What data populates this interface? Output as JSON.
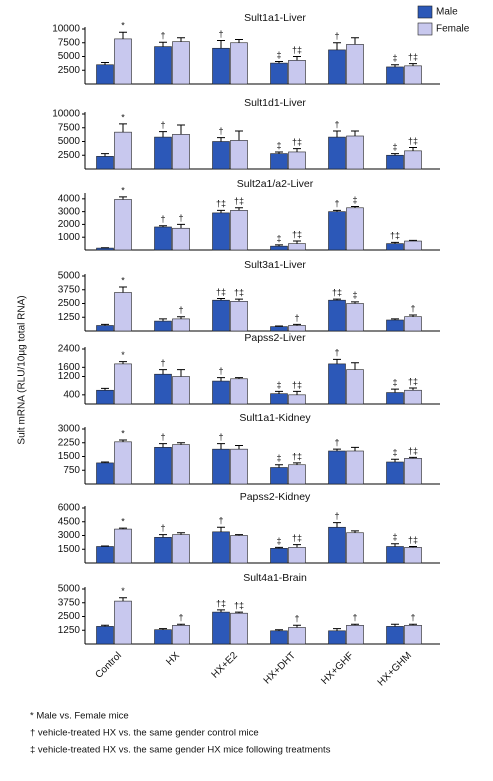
{
  "chart_data": [
    {
      "type": "bar",
      "title": "Sult1a1-Liver",
      "ylim": [
        0,
        10000
      ],
      "yticks": [
        2500,
        5000,
        7500,
        10000
      ],
      "series": [
        {
          "values": [
            3500,
            6800,
            6500,
            3800,
            6200,
            3100
          ],
          "errors": [
            400,
            800,
            1400,
            300,
            1300,
            400
          ],
          "annotations": [
            null,
            "†",
            "†",
            "‡",
            "†",
            "‡"
          ]
        },
        {
          "values": [
            8200,
            7700,
            7500,
            4300,
            7200,
            3300
          ],
          "errors": [
            1200,
            700,
            600,
            700,
            1200,
            400
          ],
          "annotations": [
            "*",
            null,
            null,
            "†‡",
            null,
            "†‡"
          ]
        }
      ]
    },
    {
      "type": "bar",
      "title": "Sult1d1-Liver",
      "ylim": [
        0,
        10000
      ],
      "yticks": [
        2500,
        5000,
        7500,
        10000
      ],
      "series": [
        {
          "values": [
            2300,
            5800,
            5000,
            2800,
            5800,
            2500
          ],
          "errors": [
            500,
            1000,
            700,
            300,
            1100,
            300
          ],
          "annotations": [
            null,
            "†",
            "†",
            "‡",
            "†",
            "‡"
          ]
        },
        {
          "values": [
            6700,
            6300,
            5200,
            3100,
            6000,
            3300
          ],
          "errors": [
            1500,
            1700,
            1700,
            600,
            900,
            600
          ],
          "annotations": [
            "*",
            null,
            null,
            "†‡",
            null,
            "†‡"
          ]
        }
      ]
    },
    {
      "type": "bar",
      "title": "Sult2a1/a2-Liver",
      "ylim": [
        0,
        4300
      ],
      "yticks": [
        1000,
        2000,
        3000,
        4000
      ],
      "series": [
        {
          "values": [
            150,
            1800,
            2900,
            300,
            3000,
            500
          ],
          "errors": [
            30,
            100,
            200,
            100,
            100,
            100
          ],
          "annotations": [
            null,
            "†",
            "†‡",
            "‡",
            "†",
            "†‡"
          ]
        },
        {
          "values": [
            3950,
            1700,
            3100,
            500,
            3300,
            700
          ],
          "errors": [
            200,
            300,
            200,
            200,
            100,
            50
          ],
          "annotations": [
            "*",
            "†",
            "†‡",
            "†‡",
            "‡",
            null
          ]
        }
      ]
    },
    {
      "type": "bar",
      "title": "Sult3a1-Liver",
      "ylim": [
        0,
        5000
      ],
      "yticks": [
        1250,
        2500,
        3750,
        5000
      ],
      "series": [
        {
          "values": [
            500,
            900,
            2800,
            400,
            2800,
            1000
          ],
          "errors": [
            100,
            200,
            150,
            50,
            100,
            100
          ],
          "annotations": [
            null,
            null,
            "†‡",
            null,
            "†‡",
            null
          ]
        },
        {
          "values": [
            3500,
            1100,
            2700,
            500,
            2500,
            1300
          ],
          "errors": [
            500,
            200,
            200,
            100,
            150,
            150
          ],
          "annotations": [
            "*",
            "†",
            "†‡",
            "†",
            "‡",
            "†"
          ]
        }
      ]
    },
    {
      "type": "bar",
      "title": "Papss2-Liver",
      "ylim": [
        0,
        2400
      ],
      "yticks": [
        400,
        1200,
        1600,
        2400
      ],
      "series": [
        {
          "values": [
            600,
            1300,
            1000,
            450,
            1750,
            500
          ],
          "errors": [
            80,
            200,
            150,
            100,
            200,
            150
          ],
          "annotations": [
            null,
            "†",
            "†",
            "‡",
            "†",
            "‡"
          ]
        },
        {
          "values": [
            1750,
            1200,
            1100,
            400,
            1500,
            600
          ],
          "errors": [
            100,
            300,
            50,
            150,
            300,
            100
          ],
          "annotations": [
            "*",
            null,
            null,
            "†‡",
            null,
            "†‡"
          ]
        }
      ]
    },
    {
      "type": "bar",
      "title": "Sult1a1-Kidney",
      "ylim": [
        0,
        3000
      ],
      "yticks": [
        750,
        1500,
        2250,
        3000
      ],
      "series": [
        {
          "values": [
            1150,
            2000,
            1900,
            900,
            1800,
            1200
          ],
          "errors": [
            50,
            200,
            300,
            150,
            100,
            150
          ],
          "annotations": [
            null,
            "†",
            "†",
            "‡",
            "†",
            "‡"
          ]
        },
        {
          "values": [
            2300,
            2150,
            1900,
            1050,
            1800,
            1400
          ],
          "errors": [
            100,
            100,
            200,
            100,
            200,
            50
          ],
          "annotations": [
            "*",
            null,
            null,
            "†‡",
            null,
            "†‡"
          ]
        }
      ]
    },
    {
      "type": "bar",
      "title": "Papss2-Kidney",
      "ylim": [
        0,
        6000
      ],
      "yticks": [
        1500,
        3000,
        4500,
        6000
      ],
      "series": [
        {
          "values": [
            1800,
            2800,
            3400,
            1600,
            3900,
            1800
          ],
          "errors": [
            50,
            300,
            500,
            100,
            500,
            300
          ],
          "annotations": [
            null,
            "†",
            "†",
            "‡",
            "†",
            "‡"
          ]
        },
        {
          "values": [
            3700,
            3100,
            3000,
            1700,
            3300,
            1700
          ],
          "errors": [
            100,
            200,
            100,
            300,
            200,
            100
          ],
          "annotations": [
            "*",
            null,
            null,
            "†‡",
            null,
            "†‡"
          ]
        }
      ]
    },
    {
      "type": "bar",
      "title": "Sult4a1-Brain",
      "ylim": [
        0,
        5000
      ],
      "yticks": [
        1250,
        2500,
        3750,
        5000
      ],
      "categories": [
        "Control",
        "HX",
        "HX+E2",
        "HX+DHT",
        "HX+GHF",
        "HX+GHM"
      ],
      "series": [
        {
          "values": [
            1600,
            1300,
            2900,
            1200,
            1200,
            1600
          ],
          "errors": [
            100,
            100,
            200,
            100,
            200,
            200
          ],
          "annotations": [
            null,
            null,
            "†‡",
            null,
            null,
            null
          ]
        },
        {
          "values": [
            3900,
            1700,
            2800,
            1500,
            1700,
            1700
          ],
          "errors": [
            300,
            100,
            100,
            200,
            100,
            100
          ],
          "annotations": [
            "*",
            "†",
            "†‡",
            "†",
            "†",
            "†"
          ]
        }
      ]
    }
  ],
  "legend": [
    {
      "name": "Male",
      "color": "#2c58b8"
    },
    {
      "name": "Female",
      "color": "#c8c8ee"
    }
  ],
  "y_label": "Sult mRNA (RLU/10µg total RNA)",
  "footnotes": [
    "* Male vs. Female mice",
    "† vehicle-treated HX vs. the same gender control mice",
    "‡ vehicle-treated HX vs. the same gender HX mice following treatments"
  ]
}
